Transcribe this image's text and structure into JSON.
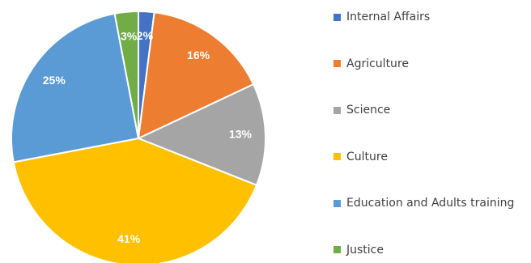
{
  "chart_data": {
    "type": "pie",
    "categories": [
      "Internal Affairs",
      "Agriculture",
      "Science",
      "Culture",
      "Education and Adults training",
      "Justice"
    ],
    "values": [
      2,
      16,
      13,
      41,
      25,
      3
    ],
    "labels": [
      "2%",
      "16%",
      "13%",
      "41%",
      "25%",
      "3%"
    ],
    "colors": [
      "#4472C4",
      "#ED7D31",
      "#A5A5A5",
      "#FFC000",
      "#5B9BD5",
      "#70AD47"
    ],
    "start": "top (12 o'clock), clockwise",
    "legend": "right"
  }
}
